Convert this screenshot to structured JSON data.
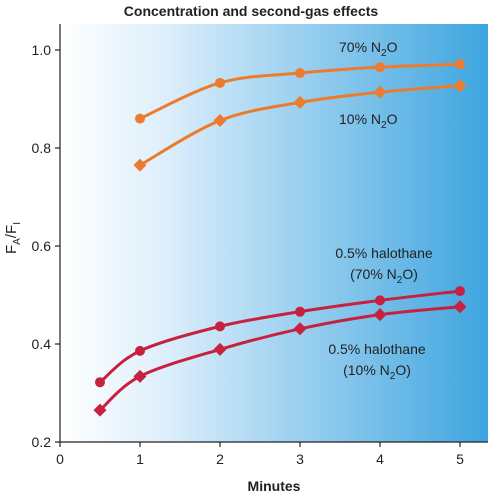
{
  "chart_data": {
    "type": "line",
    "title": "Concentration and second-gas effects",
    "xlabel": "Minutes",
    "ylabel": "FA/FI",
    "xlim": [
      0,
      5.3
    ],
    "ylim": [
      0.2,
      1.06
    ],
    "xticks": [
      0,
      1,
      2,
      3,
      4,
      5
    ],
    "yticks": [
      0.2,
      0.4,
      0.6,
      0.8,
      1.0
    ],
    "ytick_labels": [
      "0.2",
      "0.4",
      "0.6",
      "0.8",
      "1.0"
    ],
    "grid": false,
    "series": [
      {
        "name": "70% N2O",
        "label_main": "70% N",
        "label_sub": "2",
        "label_tail": "O",
        "label_line2": "",
        "color": "#EC7B2E",
        "marker": "circle",
        "x": [
          1,
          2,
          3,
          4,
          5
        ],
        "y": [
          0.86,
          0.933,
          0.953,
          0.965,
          0.971
        ],
        "curve_start": [
          1,
          0.86
        ]
      },
      {
        "name": "10% N2O",
        "label_main": "10% N",
        "label_sub": "2",
        "label_tail": "O",
        "label_line2": "",
        "color": "#EC7B2E",
        "marker": "diamond",
        "x": [
          1,
          2,
          3,
          4,
          5
        ],
        "y": [
          0.765,
          0.856,
          0.893,
          0.914,
          0.927
        ],
        "curve_start": [
          1,
          0.765
        ]
      },
      {
        "name": "0.5% halothane (70% N2O)",
        "label_main": "0.5% halothane",
        "label_sub": "",
        "label_tail": "",
        "label_line2": "(70% N2O)",
        "color": "#C8203F",
        "marker": "circle",
        "x": [
          0.5,
          1,
          2,
          3,
          4,
          5
        ],
        "y": [
          0.322,
          0.386,
          0.436,
          0.466,
          0.489,
          0.508
        ],
        "curve_start": [
          0.5,
          0.322
        ]
      },
      {
        "name": "0.5% halothane (10% N2O)",
        "label_main": "0.5% halothane",
        "label_sub": "",
        "label_tail": "",
        "label_line2": "(10% N2O)",
        "color": "#C8203F",
        "marker": "diamond",
        "x": [
          0.5,
          1,
          2,
          3,
          4,
          5
        ],
        "y": [
          0.265,
          0.334,
          0.389,
          0.431,
          0.46,
          0.476
        ],
        "curve_start": [
          0.5,
          0.265
        ]
      }
    ]
  }
}
